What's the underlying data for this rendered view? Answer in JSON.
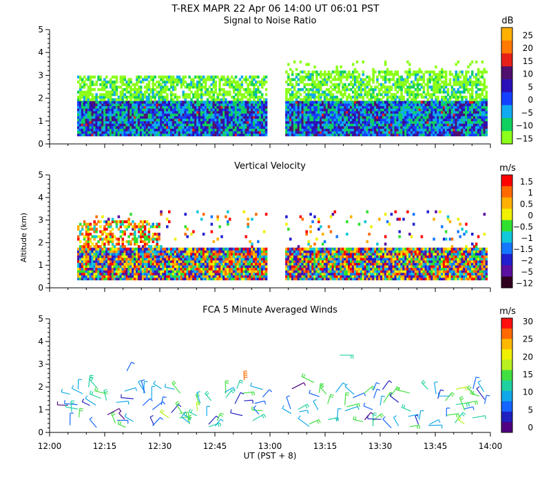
{
  "title_line1": "T-REX  MAPR 22 Apr 06  14:00 UT  06:01  PST",
  "x_axis": {
    "ticks": [
      "12:00",
      "12:15",
      "12:30",
      "12:45",
      "13:00",
      "13:15",
      "13:30",
      "13:45",
      "14:00"
    ],
    "label": "UT  (PST + 8)",
    "range_minutes_after_1200": [
      0,
      120
    ],
    "data_gap_minutes": [
      59,
      64
    ]
  },
  "shared_y_label": "Altitude (km)",
  "chart_data": [
    {
      "type": "heatmap",
      "title": "Signal to Noise Ratio",
      "ylabel": "Altitude (km)",
      "ylim": [
        0,
        5
      ],
      "yticks": [
        "0",
        "1",
        "2",
        "3",
        "4",
        "5"
      ],
      "colorbar": {
        "unit": "dB",
        "labels": [
          "25",
          "20",
          "15",
          "10",
          "5",
          "0",
          "−5",
          "−10",
          "−15"
        ],
        "colors": [
          "#ffb000",
          "#ff7a00",
          "#e8201a",
          "#50106e",
          "#2a10b8",
          "#1440ff",
          "#10aaf0",
          "#10d060",
          "#8cff1a"
        ],
        "min": -17,
        "max": 28
      },
      "data_altitude_range_km": [
        0.35,
        3.2
      ]
    },
    {
      "type": "heatmap",
      "title": "Vertical Velocity",
      "ylabel": "Altitude (km)",
      "ylim": [
        0,
        5
      ],
      "yticks": [
        "0",
        "1",
        "2",
        "3",
        "4",
        "5"
      ],
      "colorbar": {
        "unit": "m/s",
        "labels": [
          "1.5",
          "1",
          "0.5",
          "0",
          "−0.5",
          "−1",
          "−1.5",
          "−2",
          "−5",
          "−12"
        ],
        "colors": [
          "#ff0000",
          "#ff6a00",
          "#ffb000",
          "#f0f000",
          "#30e030",
          "#10c8d8",
          "#1478ff",
          "#2020d0",
          "#5a10a0",
          "#300020"
        ],
        "min": -12,
        "max": 2
      },
      "data_altitude_range_km": [
        0.35,
        3.0
      ]
    },
    {
      "type": "scatter",
      "title": "FCA 5 Minute Averaged Winds",
      "ylabel": "Altitude (km)",
      "ylim": [
        0,
        5
      ],
      "yticks": [
        "0",
        "1",
        "2",
        "3",
        "4",
        "5"
      ],
      "colorbar": {
        "unit": "m/s",
        "labels": [
          "30",
          "25",
          "20",
          "15",
          "10",
          "5",
          "0"
        ],
        "colors": [
          "#ff1010",
          "#ff6a00",
          "#ffb800",
          "#f0f000",
          "#b8f020",
          "#40e040",
          "#20d0a0",
          "#10a8e8",
          "#1464ff",
          "#2020c0",
          "#500080"
        ],
        "min": 0,
        "max": 32
      },
      "wind_barb_sample": [
        {
          "t": 6,
          "alt": 0.9,
          "speed": 12
        },
        {
          "t": 9,
          "alt": 1.7,
          "speed": 11
        },
        {
          "t": 14,
          "alt": 1.5,
          "speed": 14
        },
        {
          "t": 21,
          "alt": 2.7,
          "speed": 6
        },
        {
          "t": 28,
          "alt": 1.0,
          "speed": 8
        },
        {
          "t": 34,
          "alt": 1.9,
          "speed": 11
        },
        {
          "t": 44,
          "alt": 1.4,
          "speed": 12
        },
        {
          "t": 53,
          "alt": 2.3,
          "speed": 28
        },
        {
          "t": 57,
          "alt": 0.8,
          "speed": 6
        },
        {
          "t": 72,
          "alt": 2.2,
          "speed": 15
        },
        {
          "t": 79,
          "alt": 3.4,
          "speed": 12
        },
        {
          "t": 88,
          "alt": 1.0,
          "speed": 8
        },
        {
          "t": 103,
          "alt": 1.9,
          "speed": 14
        },
        {
          "t": 109,
          "alt": 1.6,
          "speed": 11
        },
        {
          "t": 117,
          "alt": 1.6,
          "speed": 16
        }
      ]
    }
  ]
}
